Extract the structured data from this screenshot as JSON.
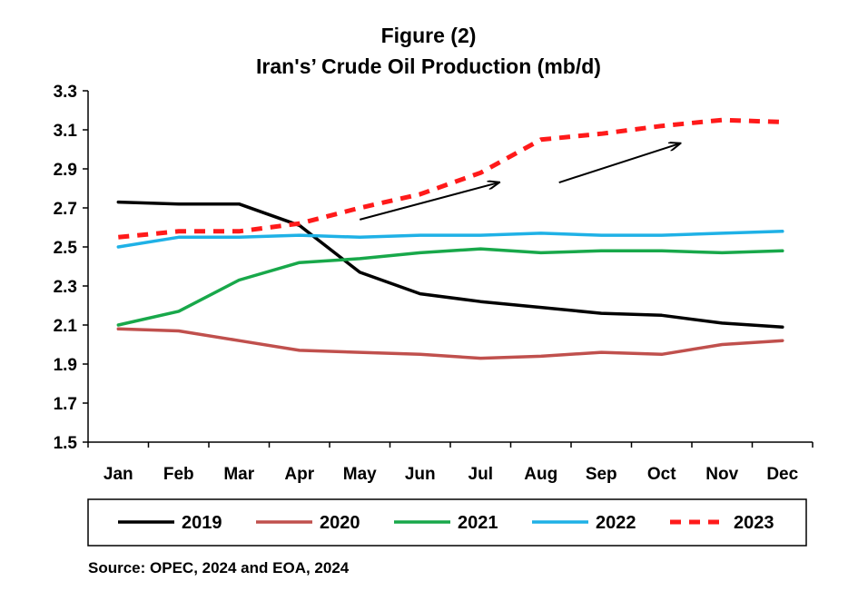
{
  "chart_data": {
    "type": "line",
    "title": "Figure (2)",
    "subtitle": "Iran's’ Crude Oil Production (mb/d)",
    "categories": [
      "Jan",
      "Feb",
      "Mar",
      "Apr",
      "May",
      "Jun",
      "Jul",
      "Aug",
      "Sep",
      "Oct",
      "Nov",
      "Dec"
    ],
    "ylim": [
      1.5,
      3.3
    ],
    "yticks": [
      "3.3",
      "3.1",
      "2.9",
      "2.7",
      "2.5",
      "2.3",
      "2.1",
      "1.9",
      "1.7",
      "1.5"
    ],
    "ytick_values": [
      3.3,
      3.1,
      2.9,
      2.7,
      2.5,
      2.3,
      2.1,
      1.9,
      1.7,
      1.5
    ],
    "grid": false,
    "legend_position": "bottom",
    "series": [
      {
        "name": "2019",
        "color": "#000000",
        "dashed": false,
        "values": [
          2.73,
          2.72,
          2.72,
          2.61,
          2.37,
          2.26,
          2.22,
          2.19,
          2.16,
          2.15,
          2.11,
          2.09
        ]
      },
      {
        "name": "2020",
        "color": "#c0504d",
        "dashed": false,
        "values": [
          2.08,
          2.07,
          2.02,
          1.97,
          1.96,
          1.95,
          1.93,
          1.94,
          1.96,
          1.95,
          2.0,
          2.02
        ]
      },
      {
        "name": "2021",
        "color": "#18a84a",
        "dashed": false,
        "values": [
          2.1,
          2.17,
          2.33,
          2.42,
          2.44,
          2.47,
          2.49,
          2.47,
          2.48,
          2.48,
          2.47,
          2.48
        ]
      },
      {
        "name": "2022",
        "color": "#1fb1e6",
        "dashed": false,
        "values": [
          2.5,
          2.55,
          2.55,
          2.56,
          2.55,
          2.56,
          2.56,
          2.57,
          2.56,
          2.56,
          2.57,
          2.58
        ]
      },
      {
        "name": "2023",
        "color": "#ff1a1a",
        "dashed": true,
        "values": [
          2.55,
          2.58,
          2.58,
          2.62,
          2.7,
          2.77,
          2.88,
          3.05,
          3.08,
          3.12,
          3.15,
          3.14
        ]
      }
    ],
    "annotations": [
      {
        "type": "arrow",
        "from": {
          "x": 4.0,
          "y": 2.64
        },
        "to": {
          "x": 6.3,
          "y": 2.83
        }
      },
      {
        "type": "arrow",
        "from": {
          "x": 7.3,
          "y": 2.83
        },
        "to": {
          "x": 9.3,
          "y": 3.03
        }
      }
    ]
  },
  "source": "Source: OPEC, 2024 and EOA, 2024"
}
